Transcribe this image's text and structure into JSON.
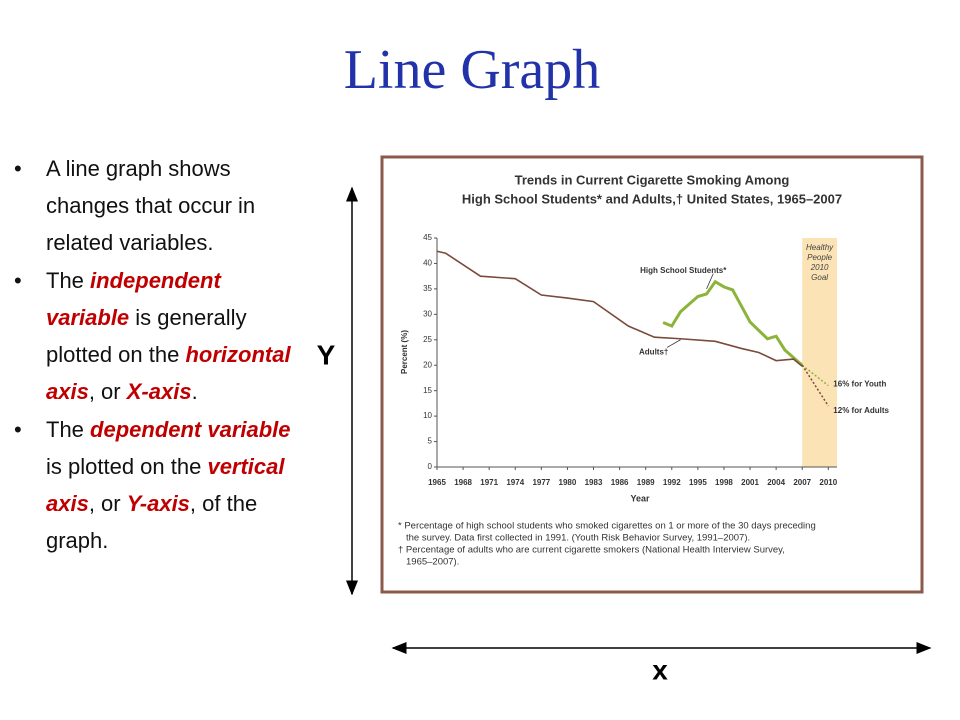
{
  "title": "Line Graph",
  "bullets": [
    [
      {
        "text": "A line graph shows changes that occur in related variables."
      }
    ],
    [
      {
        "text": "The "
      },
      {
        "text": "independent variable",
        "emphasis": true
      },
      {
        "text": " is generally plotted on the "
      },
      {
        "text": "horizontal axis",
        "emphasis": true
      },
      {
        "text": ", or "
      },
      {
        "text": "X-axis",
        "emphasis": true
      },
      {
        "text": "."
      }
    ],
    [
      {
        "text": "The "
      },
      {
        "text": "dependent variable",
        "emphasis": true
      },
      {
        "text": " is plotted on the "
      },
      {
        "text": "vertical axis",
        "emphasis": true
      },
      {
        "text": ", or "
      },
      {
        "text": "Y-axis",
        "emphasis": true
      },
      {
        "text": ", of the graph."
      }
    ]
  ],
  "y_arrow_label": "Y",
  "x_arrow_label": "x",
  "chart_data": {
    "type": "line",
    "title": [
      "Trends in Current Cigarette Smoking Among",
      "High School Students* and Adults,† United States, 1965–2007"
    ],
    "xlabel": "Year",
    "ylabel": "Percent (%)",
    "xlim": [
      1965,
      2011
    ],
    "ylim": [
      0,
      45
    ],
    "xticks": [
      1965,
      1968,
      1971,
      1974,
      1977,
      1980,
      1983,
      1986,
      1989,
      1992,
      1995,
      1998,
      2001,
      2004,
      2007,
      2010
    ],
    "yticks": [
      0,
      5,
      10,
      15,
      20,
      25,
      30,
      35,
      40,
      45
    ],
    "goal_band": {
      "label": [
        "Healthy",
        "People",
        "2010",
        "Goal"
      ],
      "xlim": [
        2007,
        2011
      ],
      "color": "#fbe3b5"
    },
    "series": [
      {
        "name": "High School Students*",
        "color": "#8db43a",
        "dashed": false,
        "x": [
          1991,
          1992,
          1993,
          1995,
          1996,
          1997,
          1998,
          1999,
          2001,
          2003,
          2004,
          2005,
          2007
        ],
        "values": [
          28.4,
          27.7,
          30.5,
          33.5,
          34,
          36.4,
          35.4,
          34.8,
          28.5,
          25.2,
          25.7,
          23,
          20
        ]
      },
      {
        "name": "Adults†",
        "color": "#7a4a3a",
        "dashed": false,
        "x": [
          1965,
          1966,
          1970,
          1974,
          1977,
          1980,
          1983,
          1987,
          1990,
          1993,
          1997,
          2000,
          2002,
          2004,
          2006,
          2007
        ],
        "values": [
          42.4,
          42,
          37.5,
          37,
          33.8,
          33.2,
          32.5,
          27.7,
          25.5,
          25.2,
          24.7,
          23.3,
          22.5,
          20.9,
          21.2,
          19.8
        ]
      },
      {
        "name": "16% for Youth",
        "color": "#8db43a",
        "dashed": true,
        "x": [
          2007,
          2010
        ],
        "values": [
          20,
          16
        ]
      },
      {
        "name": "12% for Adults",
        "color": "#7a4a3a",
        "dashed": true,
        "x": [
          2007,
          2010
        ],
        "values": [
          20,
          12
        ]
      }
    ],
    "footnotes": [
      [
        "* Percentage of high school students who smoked cigarettes on 1 or more of the 30 days preceding",
        "the survey. Data first collected in 1991. (Youth Risk Behavior Survey, 1991–2007)."
      ],
      [
        "† Percentage of adults who are current cigarette smokers (National Health Interview Survey,",
        "1965–2007)."
      ]
    ]
  }
}
